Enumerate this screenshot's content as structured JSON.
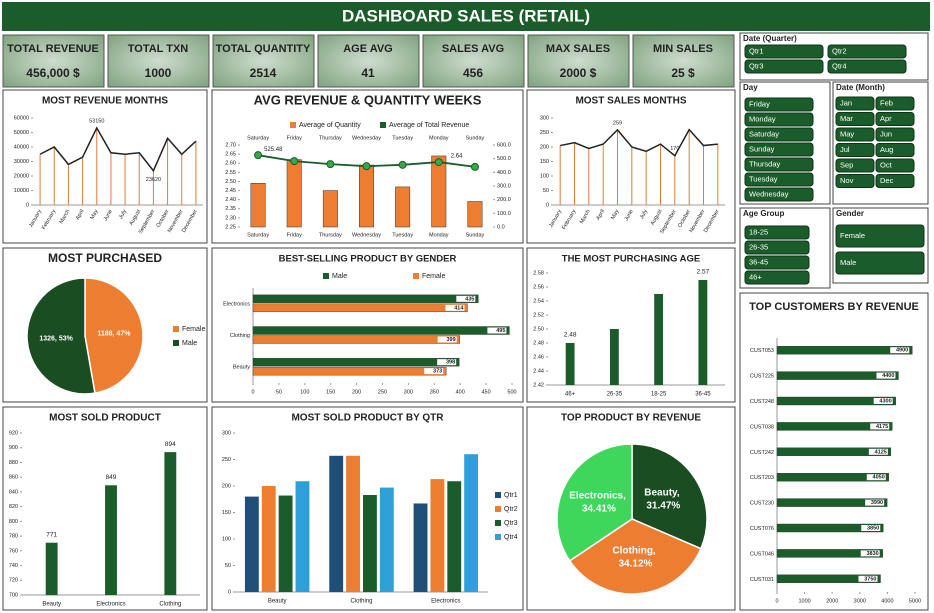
{
  "header": {
    "title": "DASHBOARD SALES (RETAIL)"
  },
  "kpis": [
    {
      "label": "TOTAL REVENUE",
      "value": "456,000 $"
    },
    {
      "label": "TOTAL TXN",
      "value": "1000"
    },
    {
      "label": "TOTAL QUANTITY",
      "value": "2514"
    },
    {
      "label": "AGE AVG",
      "value": "41"
    },
    {
      "label": "SALES AVG",
      "value": "456"
    },
    {
      "label": "MAX SALES",
      "value": "2000 $"
    },
    {
      "label": "MIN SALES",
      "value": "25 $"
    }
  ],
  "slicers": [
    {
      "title": "Date (Quarter)",
      "items": [
        "Qtr1",
        "Qtr2",
        "Qtr3",
        "Qtr4"
      ]
    },
    {
      "title": "Day",
      "items": [
        "Friday",
        "Monday",
        "Saturday",
        "Sunday",
        "Thursday",
        "Tuesday",
        "Wednesday"
      ]
    },
    {
      "title": "Date (Month)",
      "items": [
        "Jan",
        "Feb",
        "Mar",
        "Apr",
        "May",
        "Jun",
        "Jul",
        "Aug",
        "Sep",
        "Oct",
        "Nov",
        "Dec"
      ]
    },
    {
      "title": "Age Group",
      "items": [
        "18-25",
        "26-35",
        "36-45",
        "46+"
      ]
    },
    {
      "title": "Gender",
      "items": [
        "Female",
        "Male"
      ]
    }
  ],
  "chart_data": [
    {
      "type": "line",
      "title": "MOST REVENUE MONTHS",
      "categories": [
        "January",
        "February",
        "March",
        "April",
        "May",
        "June",
        "July",
        "August",
        "September",
        "October",
        "November",
        "December"
      ],
      "values": [
        35000,
        40000,
        28000,
        33000,
        53150,
        36000,
        35000,
        36000,
        23620,
        46000,
        35000,
        44000
      ],
      "value_labels": [
        null,
        null,
        null,
        null,
        "53150",
        null,
        null,
        null,
        "23620",
        null,
        null,
        null
      ],
      "color": "#222222",
      "drop_color": "#e07b39",
      "ylim": [
        0,
        60000
      ],
      "yticks": [
        0,
        10000,
        20000,
        30000,
        40000,
        50000,
        60000
      ]
    },
    {
      "type": "combo",
      "title": "AVG REVENUE & QUANTITY WEEKS",
      "categories": [
        "Saturday",
        "Friday",
        "Thursday",
        "Wednesday",
        "Tuesday",
        "Monday",
        "Sunday"
      ],
      "series": [
        {
          "name": "Average of Quantity",
          "type": "bar",
          "color": "#ed7d31",
          "values": [
            2.49,
            2.62,
            2.45,
            2.59,
            2.47,
            2.64,
            2.39
          ],
          "value_labels": [
            null,
            null,
            null,
            null,
            null,
            "2.64",
            null
          ]
        },
        {
          "name": "Average of Total Revenue",
          "type": "line",
          "axis": "y2",
          "color": "#1a5c2a",
          "values": [
            525.48,
            482,
            460,
            445,
            455,
            475,
            440
          ],
          "value_labels": [
            "525.48",
            null,
            null,
            null,
            null,
            null,
            null
          ]
        }
      ],
      "ylim": [
        2.25,
        2.7
      ],
      "yticks": [
        2.25,
        {
          "value": 2.3,
          "label": "2.30"
        },
        2.35,
        {
          "value": 2.4,
          "label": "2.40"
        },
        2.45,
        {
          "value": 2.5,
          "label": "2.50"
        },
        2.55,
        {
          "value": 2.6,
          "label": "2.60"
        },
        2.65,
        {
          "value": 2.7,
          "label": "2.70"
        }
      ],
      "y2lim": [
        0,
        600
      ],
      "y2ticks": [
        {
          "value": 0,
          "label": "0.0"
        },
        {
          "value": 100,
          "label": "100.0"
        },
        {
          "value": 200,
          "label": "200.0"
        },
        {
          "value": 300,
          "label": "300.0"
        },
        {
          "value": 400,
          "label": "400.0"
        },
        {
          "value": 500,
          "label": "500.0"
        },
        {
          "value": 600,
          "label": "600.0"
        }
      ],
      "legend": "top"
    },
    {
      "type": "line",
      "title": "MOST SALES MONTHS",
      "categories": [
        "January",
        "February",
        "March",
        "April",
        "May",
        "June",
        "July",
        "August",
        "September",
        "October",
        "November",
        "December"
      ],
      "values": [
        205,
        215,
        195,
        210,
        259,
        200,
        185,
        210,
        170,
        260,
        205,
        210
      ],
      "value_labels": [
        null,
        null,
        null,
        null,
        "259",
        null,
        null,
        null,
        "170",
        null,
        null,
        null
      ],
      "color": "#222222",
      "drop_color": "#e07b39",
      "ylim": [
        0,
        300
      ],
      "yticks": [
        0,
        50,
        100,
        150,
        200,
        250,
        300
      ]
    },
    {
      "type": "pie",
      "title": "MOST PURCHASED",
      "categories": [
        "Female",
        "Male"
      ],
      "values": [
        1188,
        1326
      ],
      "value_labels": [
        "1188, 47%",
        "1326, 53%"
      ],
      "colors": [
        "#ed7d31",
        "#1a4d22"
      ],
      "legend": "right"
    },
    {
      "type": "hbar",
      "title": "BEST-SELLING PRODUCT BY GENDER",
      "categories": [
        "Electronics",
        "Clothing",
        "Beauty"
      ],
      "series": [
        {
          "name": "Male",
          "color": "#1a5c2a",
          "values": [
            435,
            495,
            398
          ]
        },
        {
          "name": "Female",
          "color": "#ed7d31",
          "values": [
            414,
            399,
            373
          ]
        }
      ],
      "xlim": [
        0,
        500
      ],
      "xticks": [
        0,
        50,
        100,
        150,
        200,
        250,
        300,
        350,
        400,
        450,
        500
      ],
      "legend": "top"
    },
    {
      "type": "bar",
      "title": "THE MOST PURCHASING AGE",
      "categories": [
        "46+",
        "26-35",
        "18-25",
        "36-45"
      ],
      "values": [
        2.48,
        2.5,
        2.55,
        2.57
      ],
      "value_labels": [
        "2.48",
        null,
        null,
        "2.57"
      ],
      "color": "#1a5c2a",
      "ylim": [
        2.42,
        2.58
      ],
      "yticks": [
        2.42,
        2.44,
        2.46,
        2.48,
        {
          "value": 2.5,
          "label": "2.50"
        },
        2.52,
        2.54,
        2.56,
        2.58
      ]
    },
    {
      "type": "bar",
      "title": "MOST SOLD PRODUCT",
      "categories": [
        "Beauty",
        "Electronics",
        "Clothing"
      ],
      "values": [
        771,
        849,
        894
      ],
      "data_labels": true,
      "color": "#1a5c2a",
      "ylim": [
        700,
        920
      ],
      "yticks": [
        700,
        720,
        740,
        760,
        780,
        800,
        820,
        840,
        860,
        880,
        900,
        920
      ]
    },
    {
      "type": "bar",
      "title": "MOST SOLD PRODUCT  BY QTR",
      "categories": [
        "Beauty",
        "Clothing",
        "Electronics"
      ],
      "series": [
        {
          "name": "Qtr1",
          "color": "#1f4e79",
          "values": [
            180,
            257,
            167
          ]
        },
        {
          "name": "Qtr2",
          "color": "#ed7d31",
          "values": [
            200,
            257,
            213
          ]
        },
        {
          "name": "Qtr3",
          "color": "#1a5c2a",
          "values": [
            182,
            183,
            209
          ]
        },
        {
          "name": "Qtr4",
          "color": "#2e9fd8",
          "values": [
            209,
            197,
            260
          ]
        }
      ],
      "ylim": [
        0,
        300
      ],
      "yticks": [
        0,
        50,
        100,
        150,
        200,
        250,
        300
      ],
      "legend": "right"
    },
    {
      "type": "pie",
      "title": "TOP PRODUCT BY REVENUE",
      "categories": [
        "Beauty",
        "Clothing",
        "Electronics"
      ],
      "values": [
        31.47,
        34.12,
        34.41
      ],
      "value_labels": [
        "Beauty, 31.47%",
        "Clothing, 34.12%",
        "Electronics, 34.41%"
      ],
      "colors": [
        "#1a4d22",
        "#ed7d31",
        "#3fd65c"
      ]
    },
    {
      "type": "hbar",
      "title": "TOP CUSTOMERS BY REVENUE",
      "categories": [
        "CUST053",
        "CUST225",
        "CUST248",
        "CUST038",
        "CUST242",
        "CUST203",
        "CUST230",
        "CUST076",
        "CUST046",
        "CUST031"
      ],
      "values": [
        4900,
        4400,
        4300,
        4175,
        4125,
        4050,
        3990,
        3850,
        3830,
        3750
      ],
      "color": "#1a5c2a",
      "xlim": [
        0,
        5000
      ],
      "xticks": [
        0,
        1000,
        2000,
        3000,
        4000,
        5000
      ]
    }
  ]
}
